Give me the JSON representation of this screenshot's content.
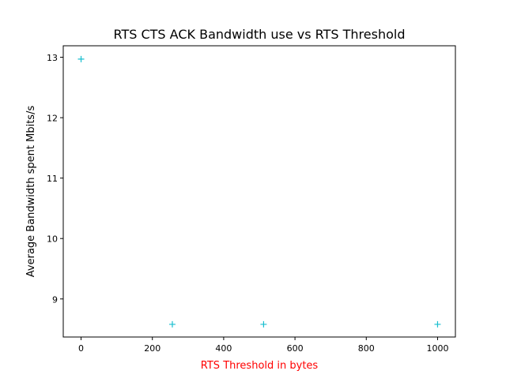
{
  "chart_data": {
    "type": "scatter",
    "title": "RTS CTS ACK Bandwidth use vs RTS Threshold",
    "xlabel": "RTS Threshold in bytes",
    "ylabel": "Average Bandwidth spent Mbits/s",
    "xlabel_color": "#ff0000",
    "marker": "+",
    "marker_color": "#17becf",
    "x_ticks": [
      0,
      200,
      400,
      600,
      800,
      1000
    ],
    "y_ticks": [
      9,
      10,
      11,
      12,
      13
    ],
    "xlim": [
      -50,
      1050
    ],
    "ylim": [
      8.37,
      13.19
    ],
    "grid": false,
    "legend": "none",
    "series": [
      {
        "x": [
          0,
          256,
          512,
          1000
        ],
        "y": [
          12.97,
          8.58,
          8.58,
          8.58
        ]
      }
    ]
  }
}
